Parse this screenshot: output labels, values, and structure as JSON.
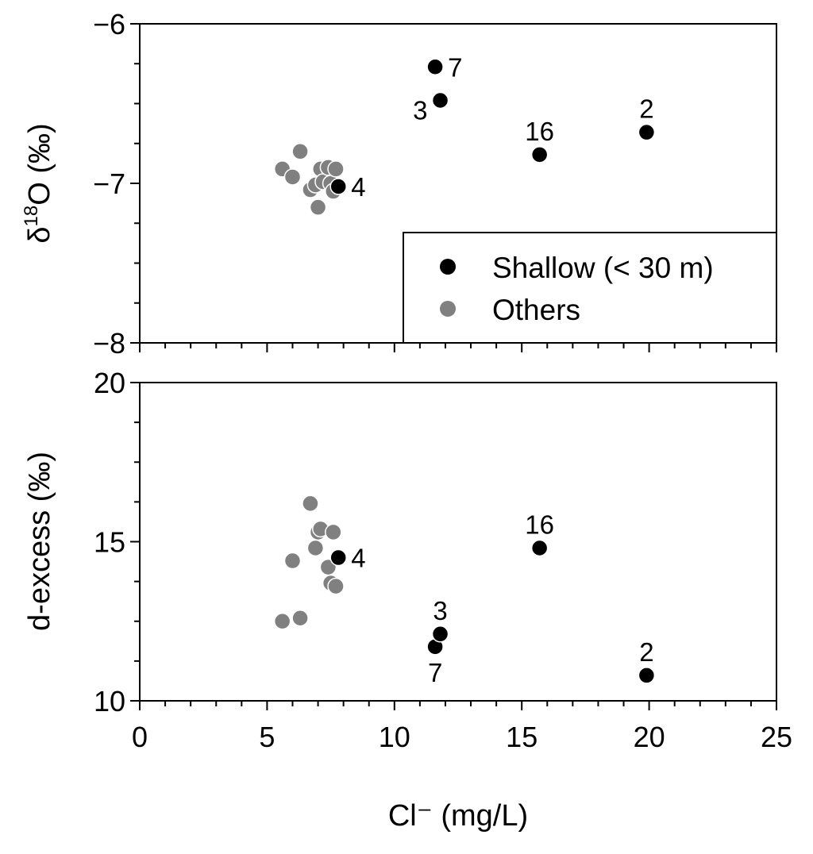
{
  "colors": {
    "shallow": "#000000",
    "others": "#808080",
    "axis": "#000000",
    "marker_edge": "#ffffff"
  },
  "chart_data": [
    {
      "type": "scatter",
      "panel": "top",
      "xlabel": "Cl⁻ (mg/L)",
      "ylabel_main": "δ",
      "ylabel_sup": "18",
      "ylabel_rest": "O (‰)",
      "xlim": [
        0,
        25
      ],
      "ylim": [
        -8,
        -6
      ],
      "yticks": [
        -8,
        -7,
        -6
      ],
      "ytick_labels": [
        "−8",
        "−7",
        "−6"
      ],
      "legend": {
        "placement": "bottom-right",
        "entries": [
          {
            "name": "Shallow (< 30 m)",
            "color": "#000000"
          },
          {
            "name": "Others",
            "color": "#808080"
          }
        ]
      },
      "series": [
        {
          "name": "Others",
          "color": "#808080",
          "points": [
            {
              "x": 5.6,
              "y": -6.91
            },
            {
              "x": 6.0,
              "y": -6.96
            },
            {
              "x": 6.3,
              "y": -6.8
            },
            {
              "x": 6.7,
              "y": -7.04
            },
            {
              "x": 6.9,
              "y": -7.01
            },
            {
              "x": 7.0,
              "y": -7.15
            },
            {
              "x": 7.1,
              "y": -6.91
            },
            {
              "x": 7.2,
              "y": -6.99
            },
            {
              "x": 7.4,
              "y": -6.9
            },
            {
              "x": 7.5,
              "y": -7.0
            },
            {
              "x": 7.6,
              "y": -7.05
            },
            {
              "x": 7.7,
              "y": -6.91
            }
          ]
        },
        {
          "name": "Shallow (< 30 m)",
          "color": "#000000",
          "points": [
            {
              "x": 7.8,
              "y": -7.02,
              "label": "4",
              "label_pos": "right"
            },
            {
              "x": 11.6,
              "y": -6.27,
              "label": "7",
              "label_pos": "right"
            },
            {
              "x": 11.8,
              "y": -6.48,
              "label": "3",
              "label_pos": "left"
            },
            {
              "x": 15.7,
              "y": -6.82,
              "label": "16",
              "label_pos": "above"
            },
            {
              "x": 19.9,
              "y": -6.68,
              "label": "2",
              "label_pos": "above"
            }
          ]
        }
      ]
    },
    {
      "type": "scatter",
      "panel": "bottom",
      "xlabel": "Cl⁻ (mg/L)",
      "ylabel": "d-excess (‰)",
      "xlim": [
        0,
        25
      ],
      "ylim": [
        10,
        20
      ],
      "xticks": [
        0,
        5,
        10,
        15,
        20,
        25
      ],
      "xtick_labels": [
        "0",
        "5",
        "10",
        "15",
        "20",
        "25"
      ],
      "yticks": [
        10,
        15,
        20
      ],
      "ytick_labels": [
        "10",
        "15",
        "20"
      ],
      "series": [
        {
          "name": "Others",
          "color": "#808080",
          "points": [
            {
              "x": 5.6,
              "y": 12.5
            },
            {
              "x": 6.0,
              "y": 14.4
            },
            {
              "x": 6.3,
              "y": 12.6
            },
            {
              "x": 6.7,
              "y": 16.2
            },
            {
              "x": 6.9,
              "y": 14.8
            },
            {
              "x": 7.0,
              "y": 15.3
            },
            {
              "x": 7.1,
              "y": 15.4
            },
            {
              "x": 7.4,
              "y": 14.2
            },
            {
              "x": 7.5,
              "y": 13.7
            },
            {
              "x": 7.6,
              "y": 15.3
            },
            {
              "x": 7.7,
              "y": 13.6
            }
          ]
        },
        {
          "name": "Shallow (< 30 m)",
          "color": "#000000",
          "points": [
            {
              "x": 7.8,
              "y": 14.5,
              "label": "4",
              "label_pos": "right"
            },
            {
              "x": 11.6,
              "y": 11.7,
              "label": "7",
              "label_pos": "below"
            },
            {
              "x": 11.8,
              "y": 12.1,
              "label": "3",
              "label_pos": "above"
            },
            {
              "x": 15.7,
              "y": 14.8,
              "label": "16",
              "label_pos": "above"
            },
            {
              "x": 19.9,
              "y": 10.8,
              "label": "2",
              "label_pos": "above"
            }
          ]
        }
      ]
    }
  ]
}
